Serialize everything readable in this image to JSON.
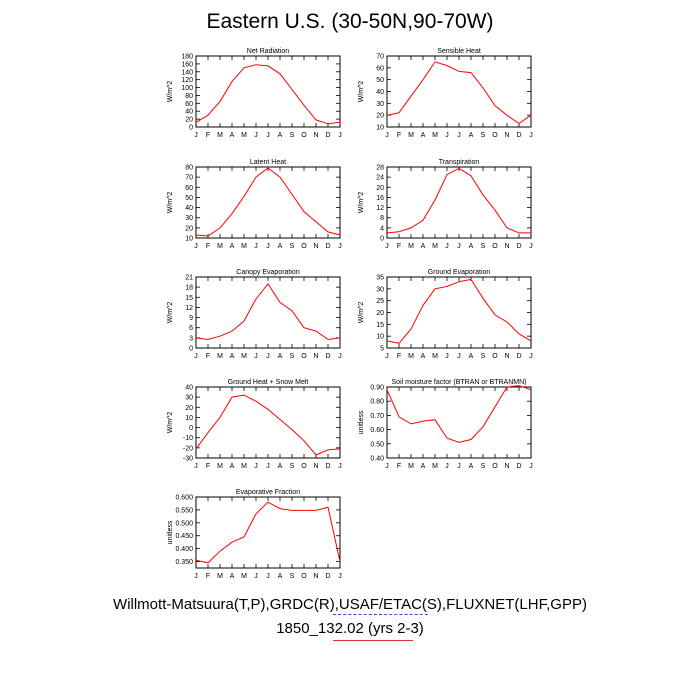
{
  "title": "Eastern U.S. (30-50N,90-70W)",
  "caption": {
    "line1": "Willmott-Matsuura(T,P),GRDC(R),USAF/ETAC(S),FLUXNET(LHF,GPP)",
    "line2": "1850_132.02 (yrs 2-3)"
  },
  "colors": {
    "series": "#ff0000",
    "axis": "#000000",
    "underline_blue": "#3a4fd0",
    "underline_red": "#e03030"
  },
  "chart_data": [
    {
      "type": "line",
      "title": "Net Radiation",
      "ylabel": "W/m^2",
      "categories": [
        "J",
        "F",
        "M",
        "A",
        "M",
        "J",
        "J",
        "A",
        "S",
        "O",
        "N",
        "D",
        "J"
      ],
      "ylim": [
        0,
        180
      ],
      "yticks": [
        0,
        20,
        40,
        60,
        80,
        100,
        120,
        140,
        160,
        180
      ],
      "values": [
        12,
        30,
        65,
        115,
        150,
        158,
        155,
        135,
        95,
        55,
        18,
        8,
        12
      ]
    },
    {
      "type": "line",
      "title": "Sensible Heat",
      "ylabel": "W/m^2",
      "categories": [
        "J",
        "F",
        "M",
        "A",
        "M",
        "J",
        "J",
        "A",
        "S",
        "O",
        "N",
        "D",
        "J"
      ],
      "ylim": [
        10,
        70
      ],
      "yticks": [
        10,
        20,
        30,
        40,
        50,
        60,
        70
      ],
      "values": [
        20,
        22,
        36,
        50,
        65,
        62,
        57,
        56,
        43,
        28,
        20,
        13,
        20
      ]
    },
    {
      "type": "line",
      "title": "Latent Heat",
      "ylabel": "W/m^2",
      "categories": [
        "J",
        "F",
        "M",
        "A",
        "M",
        "J",
        "J",
        "A",
        "S",
        "O",
        "N",
        "D",
        "J"
      ],
      "ylim": [
        10,
        80
      ],
      "yticks": [
        10,
        20,
        30,
        40,
        50,
        60,
        70,
        80
      ],
      "values": [
        13,
        12,
        20,
        34,
        51,
        70,
        79,
        70,
        53,
        36,
        26,
        16,
        13
      ]
    },
    {
      "type": "line",
      "title": "Transpiration",
      "ylabel": "W/m^2",
      "categories": [
        "J",
        "F",
        "M",
        "A",
        "M",
        "J",
        "J",
        "A",
        "S",
        "O",
        "N",
        "D",
        "J"
      ],
      "ylim": [
        0,
        28
      ],
      "yticks": [
        0,
        4,
        8,
        12,
        16,
        20,
        24,
        28
      ],
      "values": [
        2,
        2.5,
        4,
        7,
        15,
        25,
        27.5,
        24.5,
        17,
        11,
        4,
        2,
        2
      ]
    },
    {
      "type": "line",
      "title": "Canopy Evaporation",
      "ylabel": "W/m^2",
      "categories": [
        "J",
        "F",
        "M",
        "A",
        "M",
        "J",
        "J",
        "A",
        "S",
        "O",
        "N",
        "D",
        "J"
      ],
      "ylim": [
        0,
        21
      ],
      "yticks": [
        0,
        3,
        6,
        9,
        12,
        15,
        18,
        21
      ],
      "values": [
        3,
        2.5,
        3.5,
        5,
        8,
        14.5,
        19,
        13.5,
        11,
        6,
        5,
        2.5,
        3
      ]
    },
    {
      "type": "line",
      "title": "Ground Evaporation",
      "ylabel": "W/m^2",
      "categories": [
        "J",
        "F",
        "M",
        "A",
        "M",
        "J",
        "J",
        "A",
        "S",
        "O",
        "N",
        "D",
        "J"
      ],
      "ylim": [
        5,
        35
      ],
      "yticks": [
        5,
        10,
        15,
        20,
        25,
        30,
        35
      ],
      "values": [
        8,
        7,
        13,
        23,
        30,
        31,
        33,
        34,
        26,
        19,
        16,
        11,
        8
      ]
    },
    {
      "type": "line",
      "title": "Ground Heat + Snow Melt",
      "ylabel": "W/m^2",
      "categories": [
        "J",
        "F",
        "M",
        "A",
        "M",
        "J",
        "J",
        "A",
        "S",
        "O",
        "N",
        "D",
        "J"
      ],
      "ylim": [
        -30,
        40
      ],
      "yticks": [
        -30,
        -20,
        -10,
        0,
        10,
        20,
        30,
        40
      ],
      "values": [
        -21,
        -5,
        10,
        30,
        32,
        26,
        18,
        8,
        -2,
        -13,
        -27,
        -22,
        -21
      ]
    },
    {
      "type": "line",
      "title": "Soil moisture factor (BTRAN or BTRANMN)",
      "ylabel": "unitless",
      "categories": [
        "J",
        "F",
        "M",
        "A",
        "M",
        "J",
        "J",
        "A",
        "S",
        "O",
        "N",
        "D",
        "J"
      ],
      "ylim": [
        0.4,
        0.9
      ],
      "yticks": [
        "0.40",
        "0.50",
        "0.60",
        "0.70",
        "0.80",
        "0.90"
      ],
      "values": [
        0.88,
        0.69,
        0.64,
        0.66,
        0.67,
        0.54,
        0.51,
        0.53,
        0.62,
        0.76,
        0.9,
        0.91,
        0.88
      ]
    },
    {
      "type": "line",
      "title": "Evaporative Fraction",
      "ylabel": "unitless",
      "categories": [
        "J",
        "F",
        "M",
        "A",
        "M",
        "J",
        "J",
        "A",
        "S",
        "O",
        "N",
        "D",
        "J"
      ],
      "ylim": [
        0.325,
        0.6
      ],
      "yticks": [
        "0.350",
        "0.400",
        "0.450",
        "0.500",
        "0.550",
        "0.600"
      ],
      "values": [
        0.355,
        0.345,
        0.39,
        0.425,
        0.445,
        0.535,
        0.58,
        0.555,
        0.548,
        0.548,
        0.548,
        0.56,
        0.35
      ]
    }
  ]
}
